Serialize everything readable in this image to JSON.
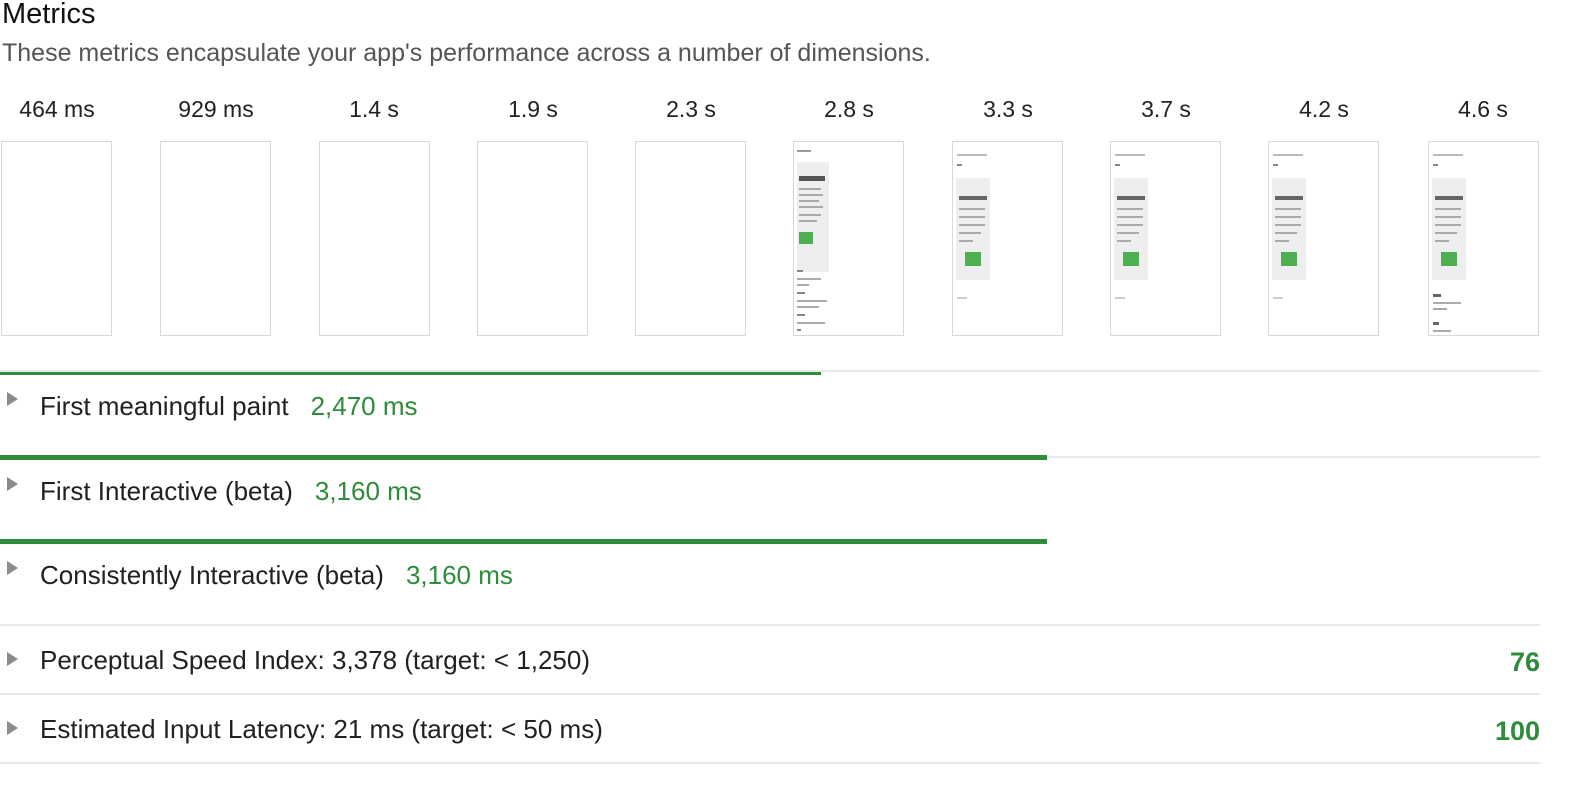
{
  "section": {
    "title": "Metrics",
    "subtitle": "These metrics encapsulate your app's performance across a number of dimensions."
  },
  "filmstrip": {
    "times": [
      "464 ms",
      "929 ms",
      "1.4 s",
      "1.9 s",
      "2.3 s",
      "2.8 s",
      "3.3 s",
      "3.7 s",
      "4.2 s",
      "4.6 s"
    ],
    "frames": [
      "blank",
      "blank",
      "blank",
      "blank",
      "blank",
      "page-early",
      "page",
      "page",
      "page",
      "page-full"
    ]
  },
  "metrics": [
    {
      "label": "First meaningful paint",
      "value": "2,470 ms",
      "bar_fraction": 0.533
    },
    {
      "label": "First Interactive (beta)",
      "value": "3,160 ms",
      "bar_fraction": 0.68
    },
    {
      "label": "Consistently Interactive (beta)",
      "value": "3,160 ms",
      "bar_fraction": 0.68
    }
  ],
  "scored_metrics": [
    {
      "label": "Perceptual Speed Index: 3,378 (target: < 1,250)",
      "score": "76"
    },
    {
      "label": "Estimated Input Latency: 21 ms (target: < 50 ms)",
      "score": "100"
    }
  ],
  "colors": {
    "pass": "#2e8b3a",
    "frame_accent": "#4caf50"
  },
  "icons": {
    "expand": "triangle-right-icon"
  }
}
